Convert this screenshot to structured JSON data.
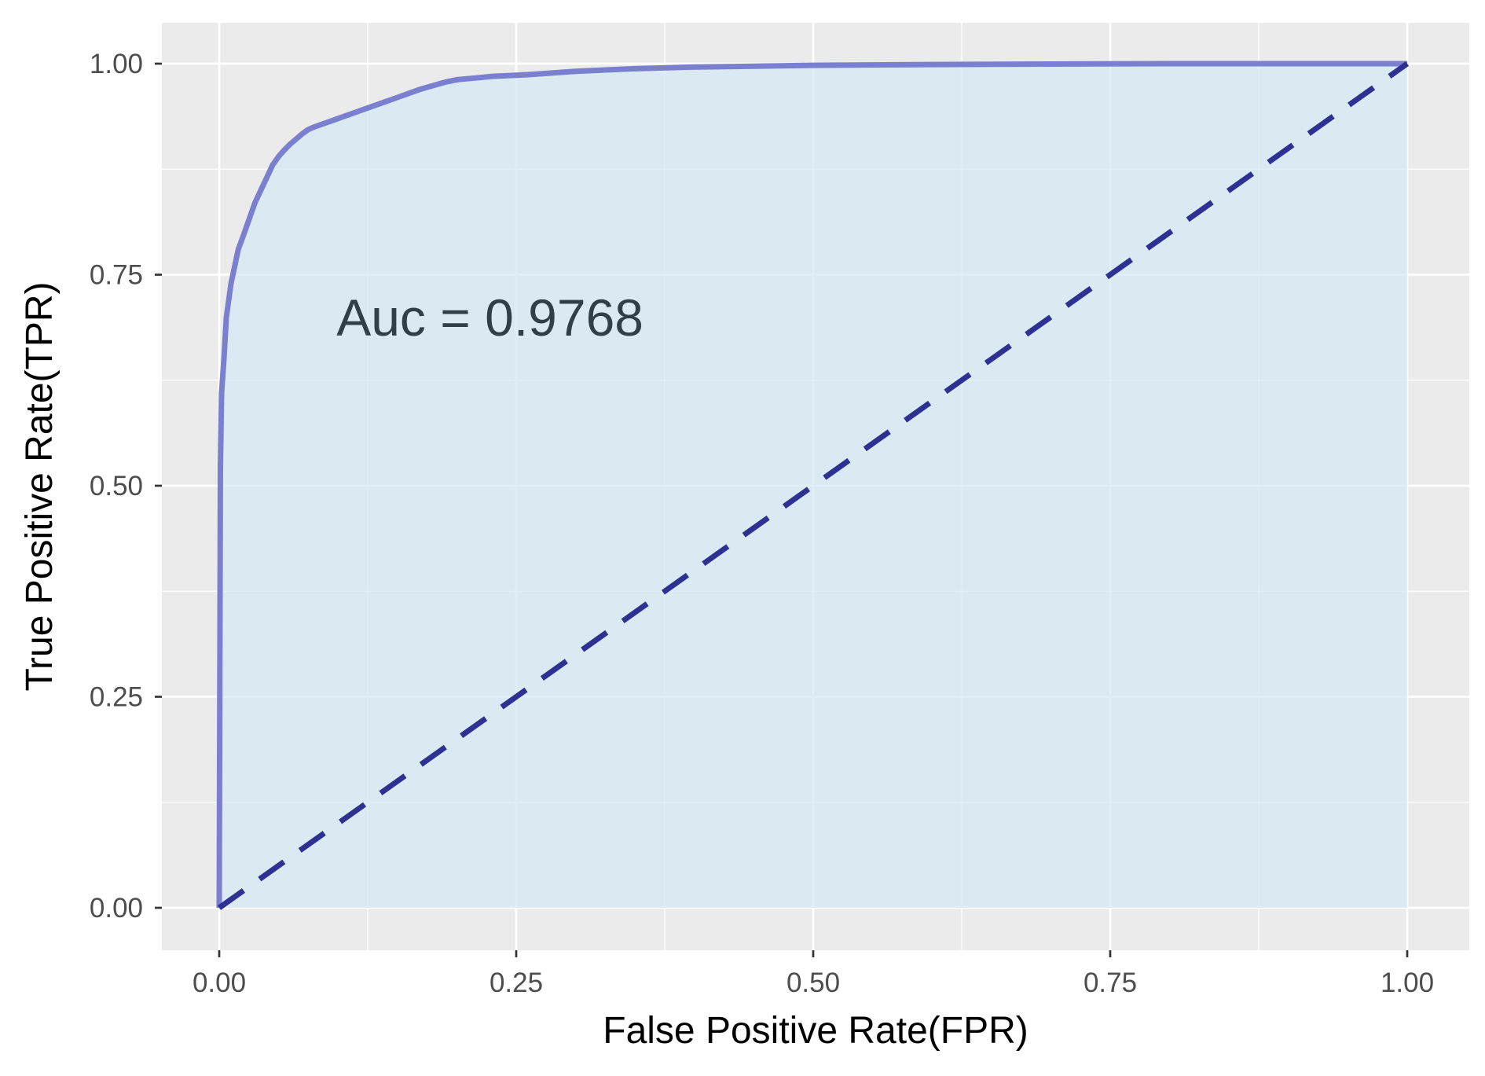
{
  "chart_data": {
    "type": "area",
    "title": "",
    "xlabel": "False Positive Rate(FPR)",
    "ylabel": "True Positive Rate(TPR)",
    "xlim": [
      -0.05,
      1.05
    ],
    "ylim": [
      -0.1,
      1.06
    ],
    "x_ticks": [
      "0.00",
      "0.25",
      "0.50",
      "0.75",
      "1.00"
    ],
    "y_ticks": [
      "0.00",
      "0.25",
      "0.50",
      "0.75",
      "1.00"
    ],
    "grid": true,
    "annotation": {
      "text": "Auc = 0.9768",
      "x": 0.1,
      "y": 0.7
    },
    "series": [
      {
        "x": [
          0,
          0.001,
          0.002,
          0.004,
          0.006,
          0.008,
          0.01,
          0.013,
          0.016,
          0.02,
          0.025,
          0.03,
          0.035,
          0.04,
          0.045,
          0.05,
          0.055,
          0.06,
          0.065,
          0.07,
          0.075,
          0.08,
          0.09,
          0.1,
          0.11,
          0.12,
          0.13,
          0.14,
          0.15,
          0.16,
          0.17,
          0.18,
          0.19,
          0.2,
          0.215,
          0.23,
          0.26,
          0.3,
          0.35,
          0.4,
          0.45,
          0.5,
          0.6,
          0.7,
          0.8,
          0.9,
          1.0
        ],
        "y": [
          0,
          0.52,
          0.61,
          0.65,
          0.7,
          0.72,
          0.74,
          0.76,
          0.78,
          0.795,
          0.815,
          0.835,
          0.85,
          0.865,
          0.88,
          0.89,
          0.898,
          0.905,
          0.911,
          0.917,
          0.922,
          0.925,
          0.93,
          0.935,
          0.94,
          0.945,
          0.95,
          0.955,
          0.96,
          0.965,
          0.97,
          0.974,
          0.978,
          0.981,
          0.983,
          0.985,
          0.987,
          0.991,
          0.994,
          0.996,
          0.997,
          0.998,
          0.999,
          0.9995,
          1.0,
          1.0,
          1.0
        ],
        "color": "#7b7fcf",
        "fill": "#d6e8f5"
      }
    ],
    "reference_line": {
      "from": [
        0,
        0
      ],
      "to": [
        1,
        1
      ],
      "style": "dashed",
      "color": "#2e3192"
    },
    "colors": {
      "panel_background": "#ebebeb",
      "grid": "#ffffff"
    }
  }
}
